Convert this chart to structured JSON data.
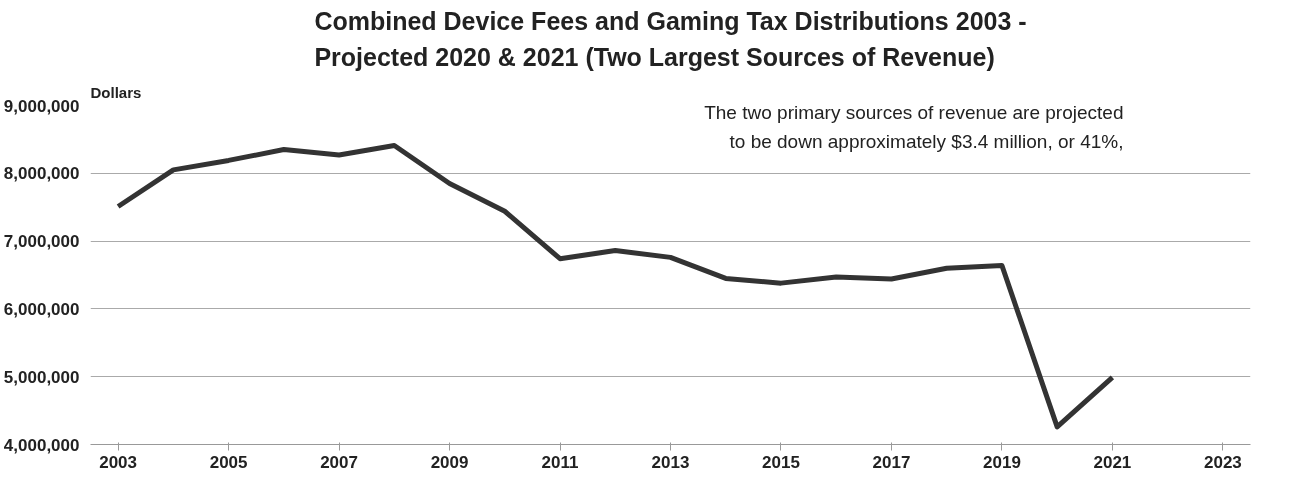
{
  "chart_data": {
    "type": "line",
    "title": "Combined Device Fees and Gaming Tax Distributions 2003 - Projected 2020 & 2021 (Two Largest Sources of Revenue)",
    "ylabel": "Dollars",
    "annotations": [
      "The two primary sources of revenue are projected",
      "to be down approximately $3.4 million, or 41%,"
    ],
    "x": [
      2003,
      2004,
      2005,
      2006,
      2007,
      2008,
      2009,
      2010,
      2011,
      2012,
      2013,
      2014,
      2015,
      2016,
      2017,
      2018,
      2019,
      2020,
      2021
    ],
    "series": [
      {
        "color": "#333333",
        "values": [
          7510000,
          8050000,
          8190000,
          8350000,
          8270000,
          8410000,
          7850000,
          7440000,
          6740000,
          6860000,
          6760000,
          6450000,
          6380000,
          6470000,
          6440000,
          6600000,
          6640000,
          4260000,
          4990000
        ]
      }
    ],
    "xlim": [
      2002.5,
      2023.5
    ],
    "xticks": [
      2003,
      2005,
      2007,
      2009,
      2011,
      2013,
      2015,
      2017,
      2019,
      2021,
      2023
    ],
    "ylim": [
      4000000,
      9000000
    ],
    "yticks": [
      {
        "value": 4000000,
        "label": "4,000,000"
      },
      {
        "value": 5000000,
        "label": "5,000,000"
      },
      {
        "value": 6000000,
        "label": "6,000,000"
      },
      {
        "value": 7000000,
        "label": "7,000,000"
      },
      {
        "value": 8000000,
        "label": "8,000,000"
      },
      {
        "value": 9000000,
        "label": "9,000,000"
      }
    ],
    "grid": "y",
    "marker": "none",
    "line_style": "solid"
  }
}
